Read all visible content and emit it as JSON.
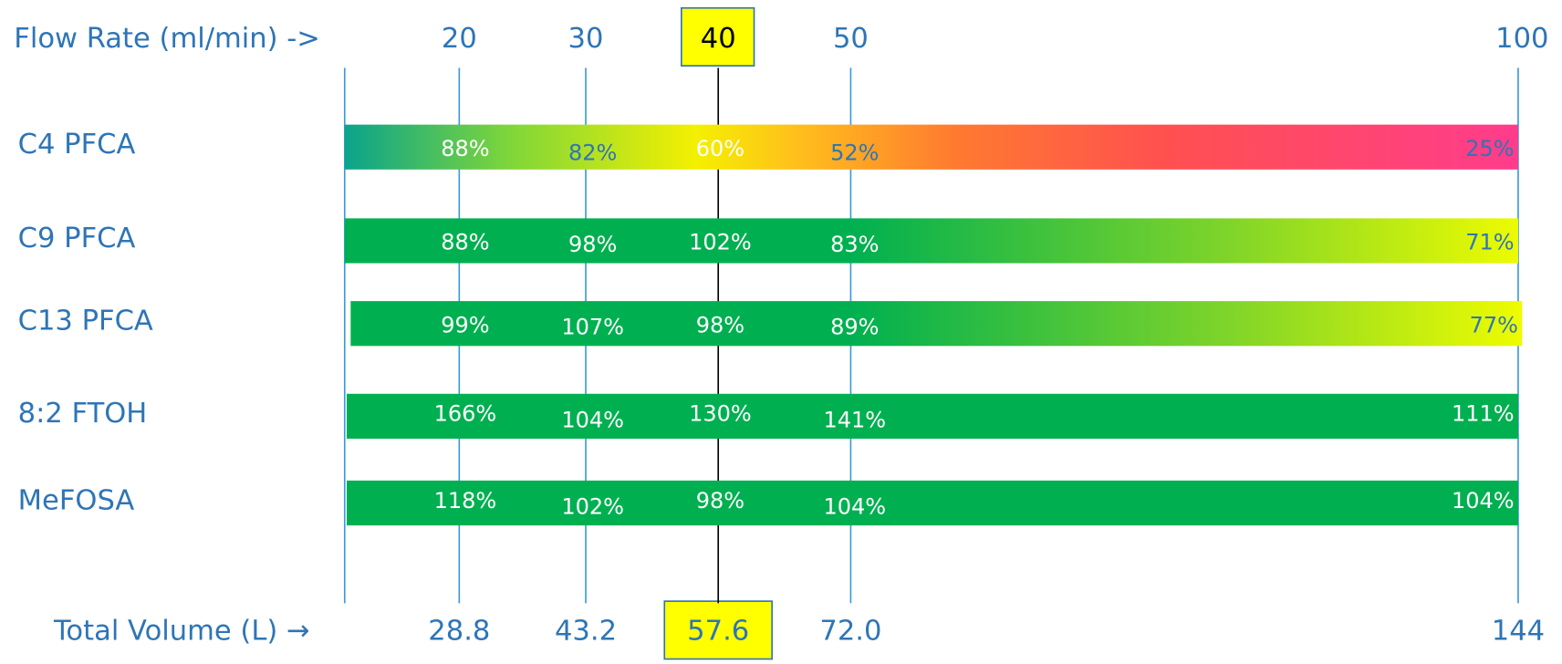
{
  "header": {
    "flow_label": "Flow Rate (ml/min) ->",
    "flow_rates": [
      "20",
      "30",
      "40",
      "50",
      "100"
    ]
  },
  "rows": [
    {
      "name": "C4 PFCA",
      "values": [
        "88%",
        "82%",
        "60%",
        "52%",
        "25%"
      ]
    },
    {
      "name": "C9 PFCA",
      "values": [
        "88%",
        "98%",
        "102%",
        "83%",
        "71%"
      ]
    },
    {
      "name": "C13 PFCA",
      "values": [
        "99%",
        "107%",
        "98%",
        "89%",
        "77%"
      ]
    },
    {
      "name": "8:2 FTOH",
      "values": [
        "166%",
        "104%",
        "130%",
        "141%",
        "111%"
      ]
    },
    {
      "name": "MeFOSA",
      "values": [
        "118%",
        "102%",
        "98%",
        "104%",
        "104%"
      ]
    }
  ],
  "footer": {
    "volume_label": "Total Volume (L) →",
    "volumes": [
      "28.8",
      "43.2",
      "57.6",
      "72.0",
      "144"
    ]
  }
}
